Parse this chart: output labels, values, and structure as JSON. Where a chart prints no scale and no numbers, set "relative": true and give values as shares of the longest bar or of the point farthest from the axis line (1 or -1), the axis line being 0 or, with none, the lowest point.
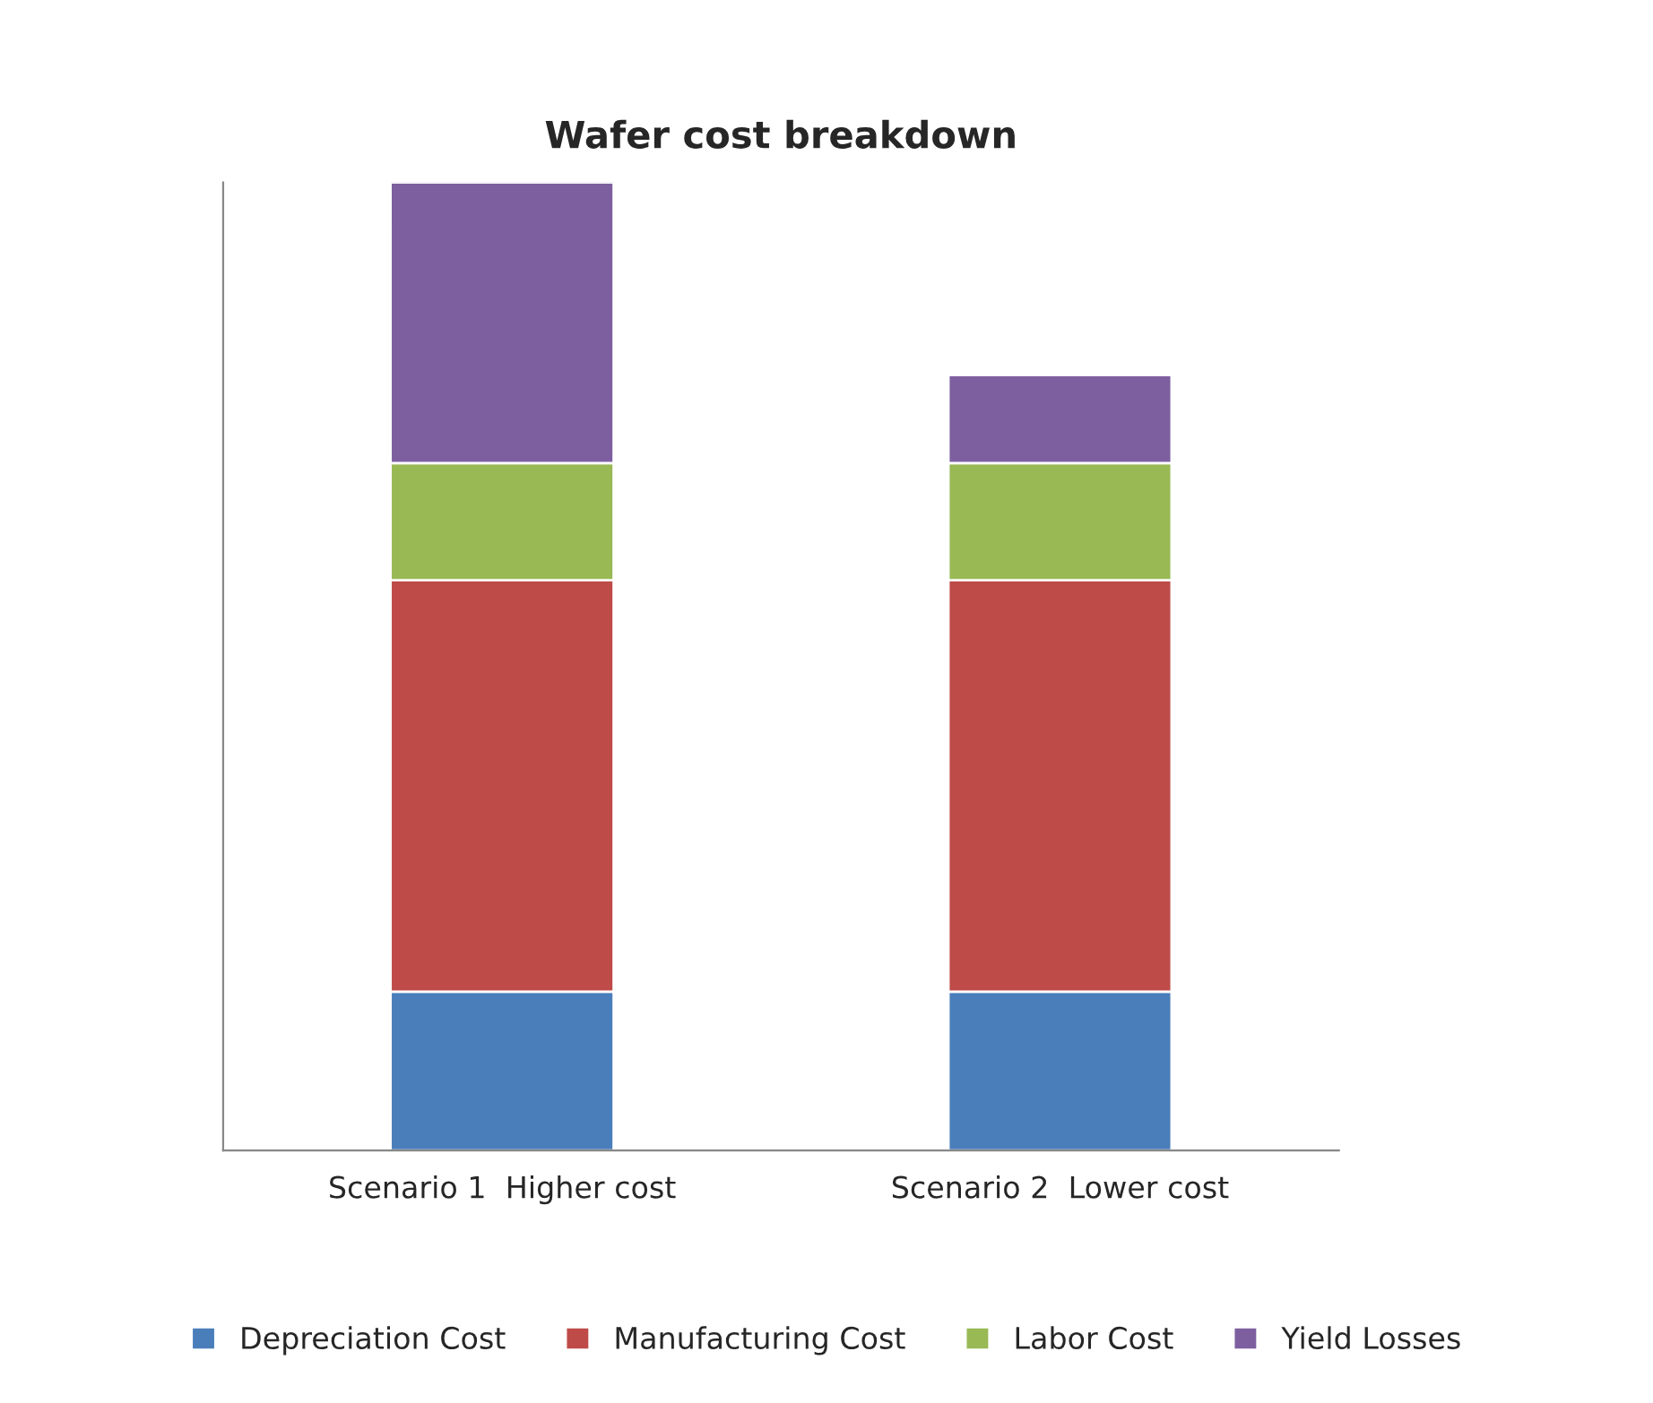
{
  "chart_data": {
    "type": "bar",
    "title": "Wafer cost breakdown",
    "categories": [
      "Scenario 1  Higher cost",
      "Scenario 2  Lower cost"
    ],
    "stacked": true,
    "relative": true,
    "legend": "bottom",
    "series": [
      {
        "name": "Depreciation Cost",
        "color": "#4a7ebb",
        "values": [
          0.164,
          0.164
        ]
      },
      {
        "name": "Manufacturing Cost",
        "color": "#be4b48",
        "values": [
          0.425,
          0.425
        ]
      },
      {
        "name": "Labor Cost",
        "color": "#98b954",
        "values": [
          0.121,
          0.121
        ]
      },
      {
        "name": "Yield Losses",
        "color": "#7d5fa0",
        "values": [
          0.29,
          0.091
        ]
      }
    ]
  }
}
